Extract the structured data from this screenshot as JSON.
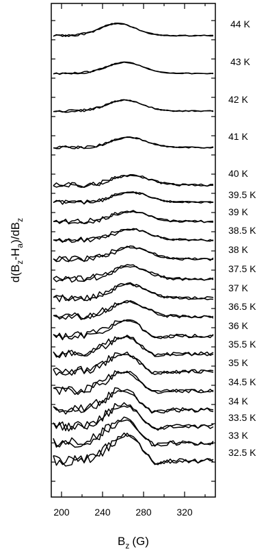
{
  "chart_data": {
    "type": "line",
    "title": "",
    "xlabel_main": "B",
    "xlabel_sub": "z",
    "xlabel_unit": "(G)",
    "ylabel_a": "d(B",
    "ylabel_b": "z",
    "ylabel_c": "-H",
    "ylabel_d": "a",
    "ylabel_e": ")/dB",
    "ylabel_f": "z",
    "xlim": [
      190,
      350
    ],
    "x_ticks": [
      200,
      240,
      280,
      320
    ],
    "x_tick_labels": [
      "200",
      "240",
      "280",
      "320"
    ],
    "grid": false,
    "series": [
      {
        "name": "44 K",
        "peak_x": 255,
        "amplitude": 0.55,
        "noise": 0.05
      },
      {
        "name": "43 K",
        "peak_x": 262,
        "amplitude": 0.5,
        "noise": 0.05
      },
      {
        "name": "42 K",
        "peak_x": 262,
        "amplitude": 0.5,
        "noise": 0.06
      },
      {
        "name": "41 K",
        "peak_x": 266,
        "amplitude": 0.45,
        "noise": 0.07
      },
      {
        "name": "40 K",
        "peak_x": 268,
        "amplitude": 0.45,
        "noise": 0.12
      },
      {
        "name": "39.5 K",
        "peak_x": 268,
        "amplitude": 0.45,
        "noise": 0.1
      },
      {
        "name": "39 K",
        "peak_x": 268,
        "amplitude": 0.45,
        "noise": 0.12
      },
      {
        "name": "38.5 K",
        "peak_x": 268,
        "amplitude": 0.5,
        "noise": 0.12
      },
      {
        "name": "38 K",
        "peak_x": 268,
        "amplitude": 0.55,
        "noise": 0.14
      },
      {
        "name": "37.5 K",
        "peak_x": 266,
        "amplitude": 0.6,
        "noise": 0.15
      },
      {
        "name": "37 K",
        "peak_x": 265,
        "amplitude": 0.65,
        "noise": 0.16
      },
      {
        "name": "36.5 K",
        "peak_x": 264,
        "amplitude": 0.7,
        "noise": 0.17
      },
      {
        "name": "36 K",
        "peak_x": 264,
        "amplitude": 0.75,
        "noise": 0.18
      },
      {
        "name": "35.5 K",
        "peak_x": 263,
        "amplitude": 0.8,
        "noise": 0.19
      },
      {
        "name": "35 K",
        "peak_x": 262,
        "amplitude": 0.85,
        "noise": 0.2
      },
      {
        "name": "34.5 K",
        "peak_x": 262,
        "amplitude": 0.9,
        "noise": 0.2
      },
      {
        "name": "34 K",
        "peak_x": 261,
        "amplitude": 0.95,
        "noise": 0.22
      },
      {
        "name": "33.5 K",
        "peak_x": 262,
        "amplitude": 1.0,
        "noise": 0.22
      },
      {
        "name": "33 K",
        "peak_x": 262,
        "amplitude": 1.1,
        "noise": 0.24
      },
      {
        "name": "32.5 K",
        "peak_x": 264,
        "amplitude": 1.2,
        "noise": 0.25
      }
    ]
  }
}
